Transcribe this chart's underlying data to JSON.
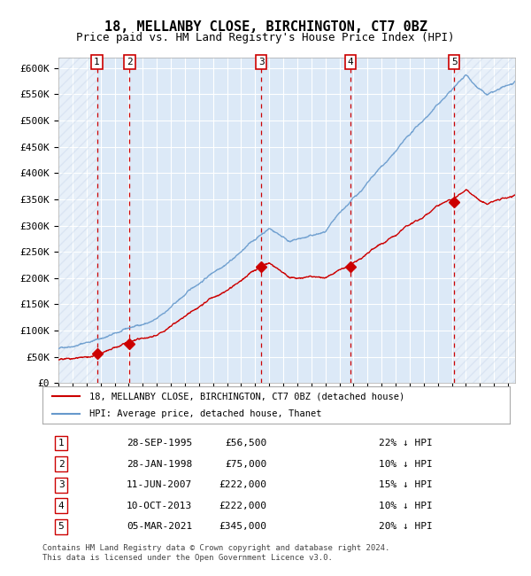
{
  "title": "18, MELLANBY CLOSE, BIRCHINGTON, CT7 0BZ",
  "subtitle": "Price paid vs. HM Land Registry's House Price Index (HPI)",
  "ylabel": "",
  "xlabel": "",
  "ylim": [
    0,
    620000
  ],
  "yticks": [
    0,
    50000,
    100000,
    150000,
    200000,
    250000,
    300000,
    350000,
    400000,
    450000,
    500000,
    550000,
    600000
  ],
  "ytick_labels": [
    "£0",
    "£50K",
    "£100K",
    "£150K",
    "£200K",
    "£250K",
    "£300K",
    "£350K",
    "£400K",
    "£450K",
    "£500K",
    "£550K",
    "£600K"
  ],
  "background_color": "#ffffff",
  "plot_bg_color": "#dce9f7",
  "grid_color": "#ffffff",
  "hatch_color": "#c0d0e8",
  "sale_color": "#cc0000",
  "hpi_color": "#6699cc",
  "sale_marker_color": "#cc0000",
  "dashed_line_color": "#cc0000",
  "legend_box_label1": "18, MELLANBY CLOSE, BIRCHINGTON, CT7 0BZ (detached house)",
  "legend_box_label2": "HPI: Average price, detached house, Thanet",
  "footer": "Contains HM Land Registry data © Crown copyright and database right 2024.\nThis data is licensed under the Open Government Licence v3.0.",
  "sales": [
    {
      "num": 1,
      "date_dec": 1995.74,
      "price": 56500,
      "label": "28-SEP-1995",
      "pct": "22%"
    },
    {
      "num": 2,
      "date_dec": 1998.07,
      "price": 75000,
      "label": "28-JAN-1998",
      "pct": "10%"
    },
    {
      "num": 3,
      "date_dec": 2007.44,
      "price": 222000,
      "label": "11-JUN-2007",
      "pct": "15%"
    },
    {
      "num": 4,
      "date_dec": 2013.78,
      "price": 222000,
      "label": "10-OCT-2013",
      "pct": "10%"
    },
    {
      "num": 5,
      "date_dec": 2021.17,
      "price": 345000,
      "label": "05-MAR-2021",
      "pct": "20%"
    }
  ],
  "table_rows": [
    [
      "1",
      "28-SEP-1995",
      "£56,500",
      "22% ↓ HPI"
    ],
    [
      "2",
      "28-JAN-1998",
      "£75,000",
      "10% ↓ HPI"
    ],
    [
      "3",
      "11-JUN-2007",
      "£222,000",
      "15% ↓ HPI"
    ],
    [
      "4",
      "10-OCT-2013",
      "£222,000",
      "10% ↓ HPI"
    ],
    [
      "5",
      "05-MAR-2021",
      "£345,000",
      "20% ↓ HPI"
    ]
  ]
}
